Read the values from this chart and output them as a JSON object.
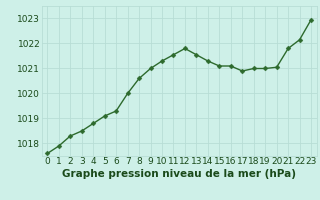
{
  "x": [
    0,
    1,
    2,
    3,
    4,
    5,
    6,
    7,
    8,
    9,
    10,
    11,
    12,
    13,
    14,
    15,
    16,
    17,
    18,
    19,
    20,
    21,
    22,
    23
  ],
  "y": [
    1017.6,
    1017.9,
    1018.3,
    1018.5,
    1018.8,
    1019.1,
    1019.3,
    1020.0,
    1020.6,
    1021.0,
    1021.3,
    1021.55,
    1021.8,
    1021.55,
    1021.3,
    1021.1,
    1021.1,
    1020.9,
    1021.0,
    1021.0,
    1021.05,
    1021.8,
    1022.15,
    1022.95
  ],
  "ylim": [
    1017.5,
    1023.5
  ],
  "yticks": [
    1018,
    1019,
    1020,
    1021,
    1022,
    1023
  ],
  "xticks": [
    0,
    1,
    2,
    3,
    4,
    5,
    6,
    7,
    8,
    9,
    10,
    11,
    12,
    13,
    14,
    15,
    16,
    17,
    18,
    19,
    20,
    21,
    22,
    23
  ],
  "line_color": "#2d6a2d",
  "marker_color": "#2d6a2d",
  "bg_color": "#cef0e8",
  "grid_major_color": "#b8ddd5",
  "grid_minor_color": "#d8f0eb",
  "xlabel": "Graphe pression niveau de la mer (hPa)",
  "xlabel_color": "#1a4a1a",
  "xlabel_fontsize": 7.5,
  "tick_fontsize": 6.5,
  "line_width": 1.0,
  "marker_size": 2.5
}
